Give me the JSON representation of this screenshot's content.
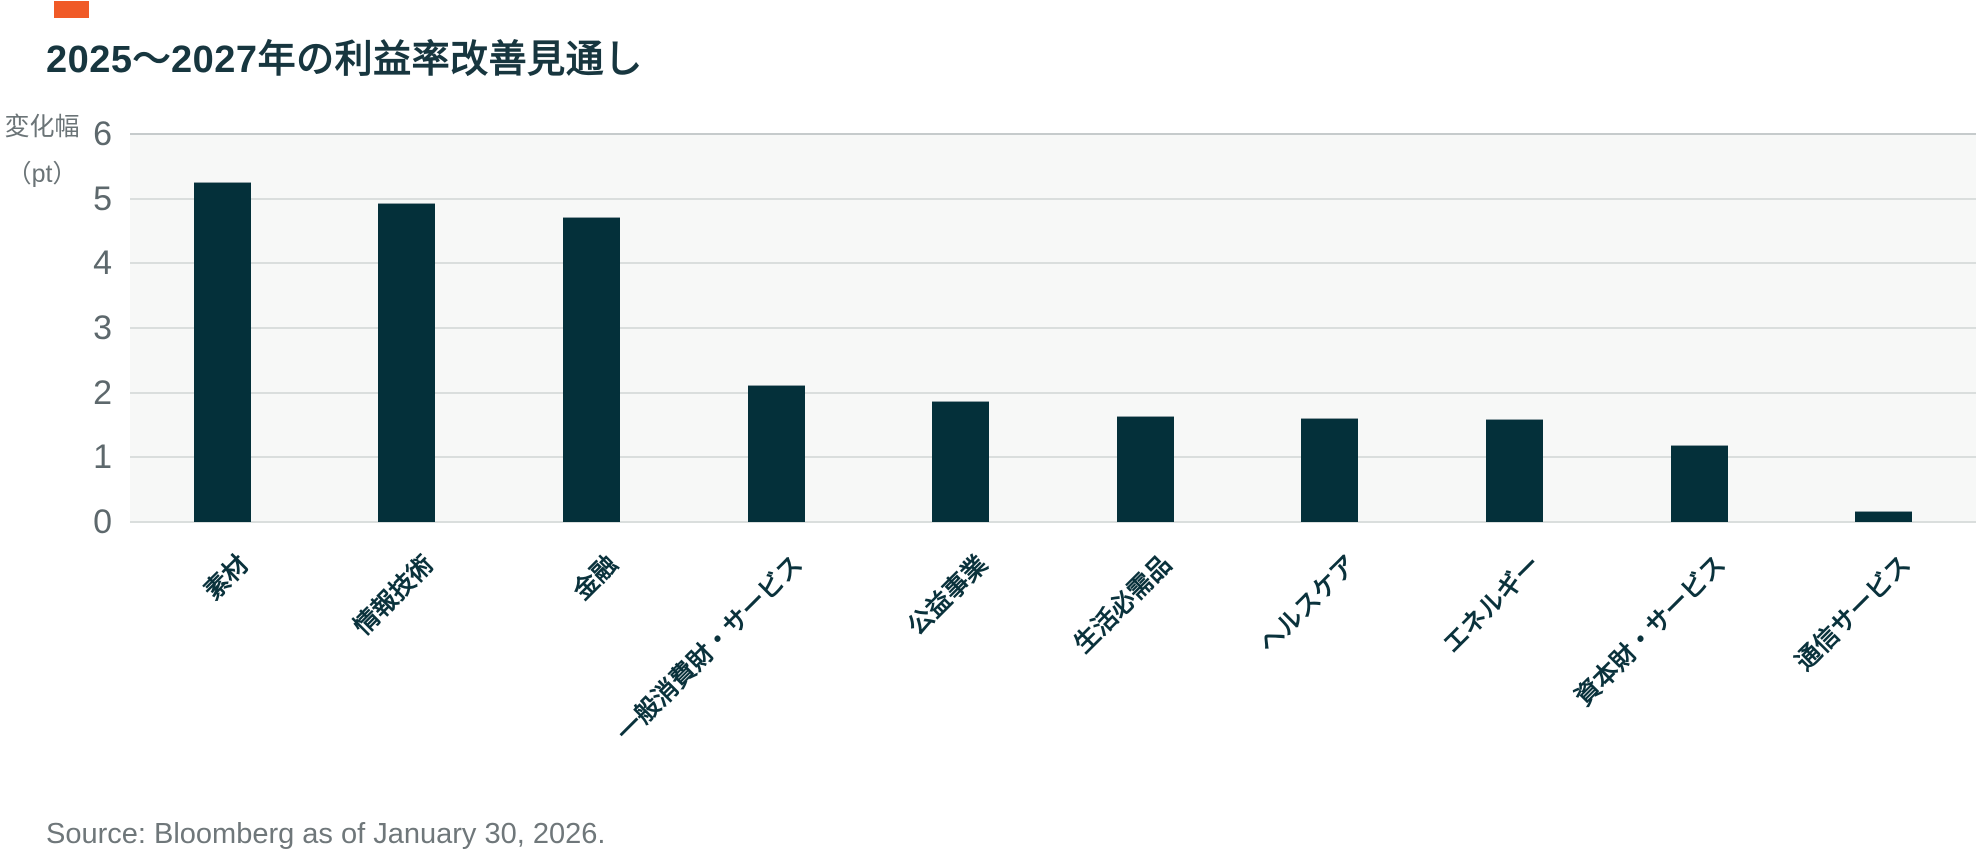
{
  "header": {
    "title": "2025～2027年の利益率改善見通し",
    "accent_color": "#f05a27"
  },
  "chart_data": {
    "type": "bar",
    "title": "2025～2027年の利益率改善見通し",
    "ylabel_lines": [
      "変化幅",
      "（pt）"
    ],
    "categories": [
      "素材",
      "情報技術",
      "金融",
      "一般消費財・サービス",
      "公益事業",
      "生活必需品",
      "ヘルスケア",
      "エネルギー",
      "資本財・サービス",
      "通信サービス"
    ],
    "values": [
      5.25,
      4.92,
      4.7,
      2.1,
      1.85,
      1.62,
      1.59,
      1.58,
      1.18,
      0.16
    ],
    "yticks": [
      0,
      1,
      2,
      3,
      4,
      5,
      6
    ],
    "ylim": [
      0,
      6
    ],
    "grid": true,
    "legend": "none",
    "bar_color": "#04303a",
    "plot_bg": "#f7f8f7",
    "x_label_rotation_deg": -45
  },
  "footer": {
    "source": "Source: Bloomberg as of January 30, 2026."
  }
}
